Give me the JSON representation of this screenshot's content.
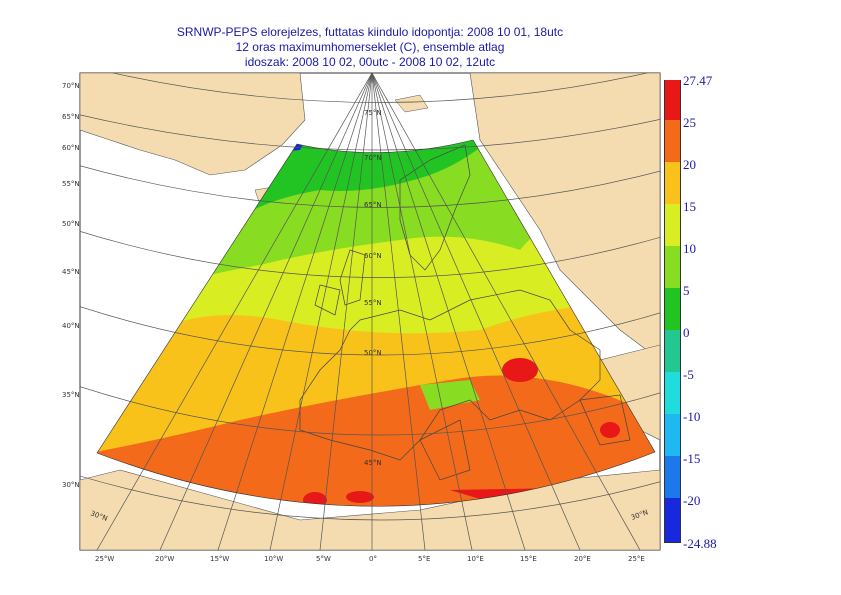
{
  "title": {
    "line1": "SRNWP-PEPS elorejelzes, futtatas kiindulo idopontja: 2008 10 01, 18utc",
    "line2": "12 oras maximumhomerseklet (C), ensemble atlag",
    "line3": "idoszak: 2008 10 02, 00utc - 2008 10 02, 12utc"
  },
  "colorbar": {
    "labels": [
      "27.47",
      "25",
      "20",
      "15",
      "10",
      "5",
      "0",
      "-5",
      "-10",
      "-15",
      "-20",
      "-24.88"
    ],
    "colors": [
      "#e81818",
      "#f26a1a",
      "#f8c21a",
      "#d8ee22",
      "#88dc22",
      "#22c424",
      "#22c890",
      "#20dcdc",
      "#20b8f0",
      "#1d78ec",
      "#1828dc"
    ]
  },
  "lat_labels": [
    "70°N",
    "65°N",
    "60°N",
    "55°N",
    "50°N",
    "45°N",
    "40°N",
    "35°N",
    "30°N"
  ],
  "lon_labels": [
    "25°W",
    "20°W",
    "15°W",
    "10°W",
    "5°W",
    "0°",
    "5°E",
    "10°E",
    "15°E",
    "20°E",
    "25°E"
  ],
  "inner_lat_labels": [
    "75°N",
    "70°N",
    "65°N",
    "60°N",
    "55°N",
    "50°N",
    "45°N"
  ],
  "corner_labels": [
    "30°N",
    "30°N"
  ],
  "colors": {
    "land": "#f5dcb0",
    "ocean": "#ffffff",
    "title": "#1a1aa6",
    "grid": "#555555"
  }
}
